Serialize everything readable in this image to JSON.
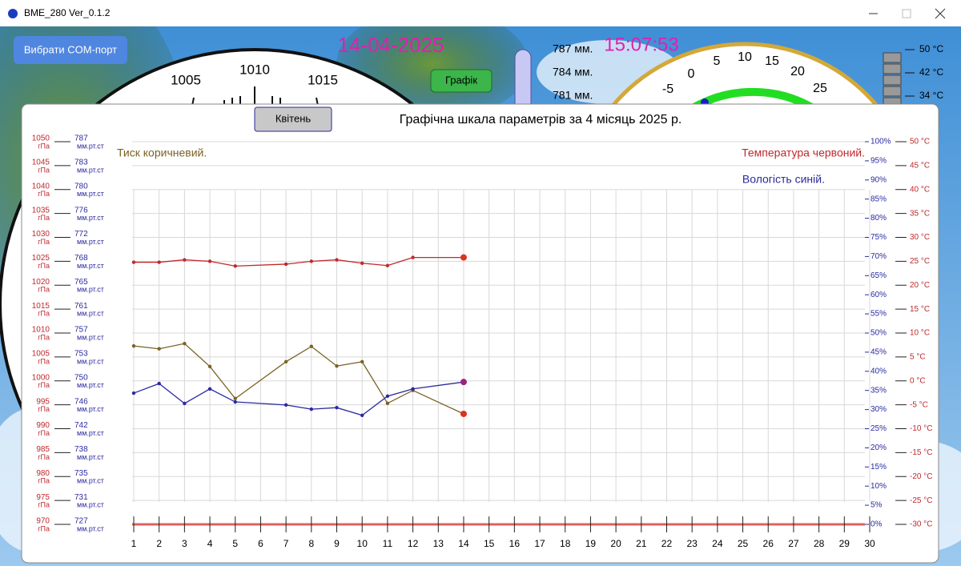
{
  "window": {
    "title": "BME_280  Ver_0.1.2"
  },
  "controls": {
    "com_button": "Вибрати COM-порт",
    "graph_button": "Графік",
    "date": "14-04-2025",
    "time": "15:07:53"
  },
  "barometer": {
    "labels": [
      "1005",
      "1010",
      "1015"
    ]
  },
  "tube_scale": [
    "787 мм.",
    "784 мм.",
    "781 мм."
  ],
  "temp_dial": {
    "labels": [
      "-5",
      "0",
      "5",
      "10",
      "15",
      "20",
      "25"
    ]
  },
  "temp_bar_scale": [
    "50 °C",
    "42 °C",
    "34 °C"
  ],
  "month_button": "Квітень",
  "chart_data": {
    "type": "line",
    "title": "Графічна шкала параметрів за 4 місяць 2025 р.",
    "annotations": [
      "Тиск коричневий.",
      "Температура червоний.",
      "Вологість синій."
    ],
    "x": [
      1,
      2,
      3,
      4,
      5,
      7,
      8,
      9,
      10,
      11,
      12,
      14
    ],
    "xlim": [
      1,
      30
    ],
    "xticks": [
      1,
      2,
      3,
      4,
      5,
      6,
      7,
      8,
      9,
      10,
      11,
      12,
      13,
      14,
      15,
      16,
      17,
      18,
      19,
      20,
      21,
      22,
      23,
      24,
      25,
      26,
      27,
      28,
      29,
      30
    ],
    "ylim": [
      970,
      1050
    ],
    "y_unit": "гПа",
    "yticks": [
      970,
      975,
      980,
      985,
      990,
      995,
      1000,
      1005,
      1010,
      1015,
      1020,
      1025,
      1030,
      1035,
      1040,
      1045,
      1050
    ],
    "y_mm_unit": "мм.рт.ст",
    "y_mm_ticks": [
      727,
      731,
      735,
      738,
      742,
      746,
      750,
      753,
      757,
      761,
      765,
      768,
      772,
      776,
      780,
      783,
      787
    ],
    "y2lim": [
      0,
      100
    ],
    "y2ticks": [
      {
        "value": 0,
        "label": "0%"
      },
      {
        "value": 5,
        "label": "5%"
      },
      {
        "value": 10,
        "label": "10%"
      },
      {
        "value": 15,
        "label": "15%"
      },
      {
        "value": 20,
        "label": "20%"
      },
      {
        "value": 25,
        "label": "25%"
      },
      {
        "value": 30,
        "label": "30%"
      },
      {
        "value": 35,
        "label": "35%"
      },
      {
        "value": 40,
        "label": "40%"
      },
      {
        "value": 45,
        "label": "45%"
      },
      {
        "value": 50,
        "label": "50%"
      },
      {
        "value": 55,
        "label": "55%"
      },
      {
        "value": 60,
        "label": "60%"
      },
      {
        "value": 65,
        "label": "65%"
      },
      {
        "value": 70,
        "label": "70%"
      },
      {
        "value": 75,
        "label": "75%"
      },
      {
        "value": 80,
        "label": "80%"
      },
      {
        "value": 85,
        "label": "85%"
      },
      {
        "value": 90,
        "label": "90%"
      },
      {
        "value": 95,
        "label": "95%"
      },
      {
        "value": 100,
        "label": "100%"
      }
    ],
    "y3lim": [
      -30,
      50
    ],
    "y3ticks": [
      {
        "value": -30,
        "label": "-30 °C"
      },
      {
        "value": -25,
        "label": "-25 °C"
      },
      {
        "value": -20,
        "label": "-20 °C"
      },
      {
        "value": -15,
        "label": "-15 °C"
      },
      {
        "value": -10,
        "label": "-10 °C"
      },
      {
        "value": -5,
        "label": "-5 °C"
      },
      {
        "value": 0,
        "label": "0 °C"
      },
      {
        "value": 5,
        "label": "5 °C"
      },
      {
        "value": 10,
        "label": "10 °C"
      },
      {
        "value": 15,
        "label": "15 °C"
      },
      {
        "value": 20,
        "label": "20 °C"
      },
      {
        "value": 25,
        "label": "25 °C"
      },
      {
        "value": 30,
        "label": "30 °C"
      },
      {
        "value": 35,
        "label": "35 °C"
      },
      {
        "value": 40,
        "label": "40 °C"
      },
      {
        "value": 45,
        "label": "45 °C"
      },
      {
        "value": 50,
        "label": "50 °C"
      }
    ],
    "grid": true,
    "series": [
      {
        "name": "Тиск",
        "axis": "y",
        "color": "#7a6224",
        "values": [
          1007.3,
          1006.7,
          1007.8,
          1003,
          996.3,
          1004,
          1007.2,
          1003.1,
          1004,
          995.3,
          998,
          993.1
        ]
      },
      {
        "name": "Температура",
        "axis": "y3",
        "color": "#c0282d",
        "values": [
          24.8,
          24.8,
          25.3,
          25,
          24,
          24.4,
          25,
          25.3,
          24.6,
          24.1,
          25.8,
          25.8
        ]
      },
      {
        "name": "Вологість",
        "axis": "y2",
        "color": "#2a2aa0",
        "values": [
          34.3,
          36.8,
          31.6,
          35.4,
          32,
          31.2,
          30.1,
          30.5,
          28.5,
          33.5,
          35.4,
          37.2
        ]
      }
    ]
  }
}
